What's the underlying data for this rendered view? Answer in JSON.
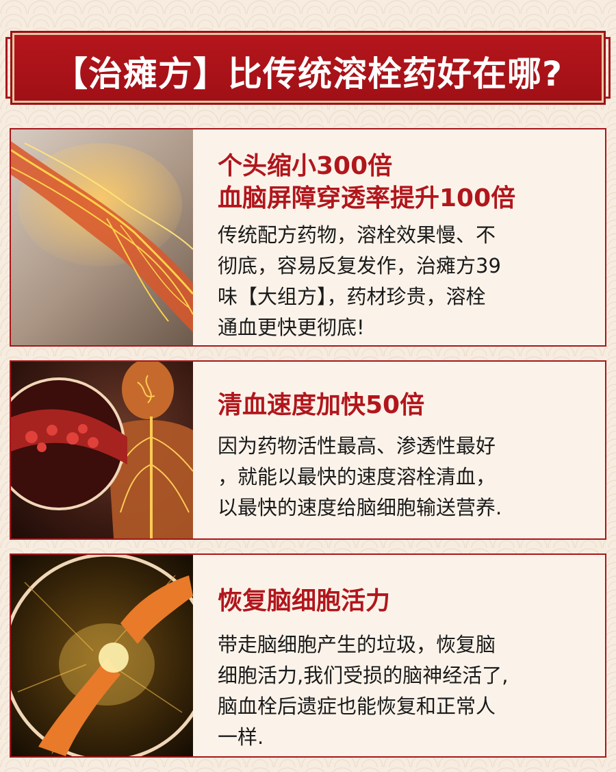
{
  "header": {
    "title": "【治瘫方】比传统溶栓药好在哪?"
  },
  "cards": [
    {
      "heading_lines": [
        "个头缩小300倍",
        "血脑屏障穿透率提升100倍"
      ],
      "body_lines": [
        "传统配方药物，溶栓效果慢、不",
        "彻底，容易反复发作，治瘫方39",
        "味【大组方】，药材珍贵，溶栓",
        "通血更快更彻底!"
      ],
      "image_icon": "arm-nerves-illustration"
    },
    {
      "heading_lines": [
        "清血速度加快50倍"
      ],
      "body_lines": [
        "因为药物活性最高、渗透性最好",
        "，就能以最快的速度溶栓清血，",
        "以最快的速度给脑细胞输送营养."
      ],
      "image_icon": "blood-vessel-nervous-system-illustration"
    },
    {
      "heading_lines": [
        "恢复脑细胞活力"
      ],
      "body_lines": [
        "带走脑细胞产生的垃圾，恢复脑",
        "细胞活力,我们受损的脑神经活了,",
        "脑血栓后遗症也能恢复和正常人",
        "一样."
      ],
      "image_icon": "glowing-brain-cells-illustration"
    }
  ],
  "colors": {
    "accent": "#b1161c",
    "background": "#f6ece0",
    "card": "#fbf3ea"
  }
}
